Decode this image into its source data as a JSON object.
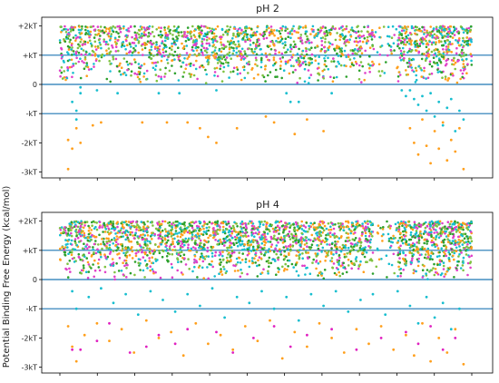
{
  "chart_data": [
    {
      "type": "scatter",
      "title": "pH 2",
      "ylabel": "",
      "xlabel": "",
      "ylim": [
        -3.2,
        2.3
      ],
      "yticks": [
        {
          "value": 2,
          "label": "+2kT"
        },
        {
          "value": 1,
          "label": "+kT"
        },
        {
          "value": 0,
          "label": "0"
        },
        {
          "value": -1,
          "label": "-kT"
        },
        {
          "value": -2,
          "label": "-2kT"
        },
        {
          "value": -3,
          "label": "-3kT"
        }
      ],
      "xtick_count": 12,
      "reference_lines": [
        1,
        0,
        -1
      ],
      "reference_line_color": "#1f77b4",
      "series": [
        {
          "color": "#17becf",
          "points": [
            [
              3,
              -0.6
            ],
            [
              4,
              -0.9
            ],
            [
              4,
              -1.2
            ],
            [
              5,
              -0.3
            ],
            [
              5,
              -0.1
            ],
            [
              9,
              -0.2
            ],
            [
              14,
              -0.3
            ],
            [
              24,
              -0.3
            ],
            [
              29,
              -0.3
            ],
            [
              38,
              -0.2
            ],
            [
              55,
              -0.3
            ],
            [
              56,
              -0.6
            ],
            [
              58,
              -0.6
            ],
            [
              66,
              -0.3
            ],
            [
              83,
              -0.2
            ],
            [
              84,
              -0.4
            ],
            [
              85,
              -0.2
            ],
            [
              86,
              -0.5
            ],
            [
              87,
              -0.7
            ],
            [
              88,
              -0.4
            ],
            [
              89,
              -0.9
            ],
            [
              90,
              -0.3
            ],
            [
              91,
              -1.1
            ],
            [
              92,
              -0.6
            ],
            [
              93,
              -1.4
            ],
            [
              94,
              -0.8
            ],
            [
              95,
              -0.5
            ],
            [
              96,
              -1.6
            ],
            [
              97,
              -0.9
            ],
            [
              98,
              -1.2
            ]
          ]
        },
        {
          "color": "#ff9f1c",
          "points": [
            [
              2,
              -1.9
            ],
            [
              2,
              -2.9
            ],
            [
              3,
              -2.2
            ],
            [
              4,
              -1.5
            ],
            [
              5,
              -2.0
            ],
            [
              8,
              -1.4
            ],
            [
              10,
              -1.3
            ],
            [
              20,
              -1.3
            ],
            [
              26,
              -1.3
            ],
            [
              31,
              -1.3
            ],
            [
              34,
              -1.5
            ],
            [
              36,
              -1.8
            ],
            [
              38,
              -2.0
            ],
            [
              43,
              -1.5
            ],
            [
              50,
              -1.1
            ],
            [
              52,
              -1.3
            ],
            [
              57,
              -1.7
            ],
            [
              60,
              -1.2
            ],
            [
              64,
              -1.6
            ],
            [
              85,
              -1.5
            ],
            [
              86,
              -2.0
            ],
            [
              87,
              -2.4
            ],
            [
              88,
              -1.2
            ],
            [
              89,
              -2.1
            ],
            [
              90,
              -2.7
            ],
            [
              91,
              -1.6
            ],
            [
              92,
              -2.2
            ],
            [
              93,
              -1.3
            ],
            [
              94,
              -2.6
            ],
            [
              95,
              -1.9
            ],
            [
              96,
              -2.3
            ],
            [
              97,
              -1.5
            ],
            [
              98,
              -2.9
            ]
          ]
        }
      ],
      "dense_band": {
        "y_range": [
          0.0,
          2.0
        ],
        "colors": [
          "#17becf",
          "#ff9f1c",
          "#7fc241",
          "#e040c8",
          "#2ca02c"
        ]
      }
    },
    {
      "type": "scatter",
      "title": "pH 4",
      "ylabel": "Potential Binding Free Energy (kcal/mol)",
      "xlabel": "",
      "ylim": [
        -3.2,
        2.3
      ],
      "yticks": [
        {
          "value": 2,
          "label": "+2kT"
        },
        {
          "value": 1,
          "label": "+kT"
        },
        {
          "value": 0,
          "label": "0"
        },
        {
          "value": -1,
          "label": "-kT"
        },
        {
          "value": -2,
          "label": "-2kT"
        },
        {
          "value": -3,
          "label": "-3kT"
        }
      ],
      "xtick_count": 12,
      "reference_lines": [
        1,
        0,
        -1
      ],
      "reference_line_color": "#1f77b4",
      "series": [
        {
          "color": "#17becf",
          "points": [
            [
              3,
              -0.4
            ],
            [
              4,
              -1.0
            ],
            [
              7,
              -0.6
            ],
            [
              10,
              -0.3
            ],
            [
              13,
              -0.8
            ],
            [
              16,
              -0.5
            ],
            [
              19,
              -1.2
            ],
            [
              22,
              -0.4
            ],
            [
              25,
              -0.7
            ],
            [
              28,
              -1.1
            ],
            [
              31,
              -0.5
            ],
            [
              34,
              -0.9
            ],
            [
              37,
              -0.3
            ],
            [
              40,
              -1.3
            ],
            [
              43,
              -0.6
            ],
            [
              46,
              -0.8
            ],
            [
              49,
              -0.4
            ],
            [
              52,
              -1.0
            ],
            [
              55,
              -0.6
            ],
            [
              58,
              -1.4
            ],
            [
              61,
              -0.5
            ],
            [
              64,
              -0.9
            ],
            [
              67,
              -0.4
            ],
            [
              70,
              -1.1
            ],
            [
              73,
              -0.7
            ],
            [
              76,
              -0.5
            ],
            [
              79,
              -1.2
            ],
            [
              82,
              -0.4
            ],
            [
              85,
              -0.9
            ],
            [
              87,
              -1.5
            ],
            [
              89,
              -0.6
            ],
            [
              91,
              -1.3
            ],
            [
              93,
              -0.8
            ],
            [
              95,
              -1.7
            ],
            [
              97,
              -1.0
            ]
          ]
        },
        {
          "color": "#ff9f1c",
          "points": [
            [
              2,
              -1.6
            ],
            [
              3,
              -2.3
            ],
            [
              4,
              -2.8
            ],
            [
              6,
              -1.9
            ],
            [
              9,
              -1.5
            ],
            [
              12,
              -2.1
            ],
            [
              15,
              -1.7
            ],
            [
              18,
              -2.5
            ],
            [
              21,
              -1.4
            ],
            [
              24,
              -2.0
            ],
            [
              27,
              -1.8
            ],
            [
              30,
              -2.6
            ],
            [
              33,
              -1.5
            ],
            [
              36,
              -2.2
            ],
            [
              39,
              -1.9
            ],
            [
              42,
              -2.4
            ],
            [
              45,
              -1.6
            ],
            [
              48,
              -2.1
            ],
            [
              51,
              -1.4
            ],
            [
              54,
              -2.7
            ],
            [
              57,
              -1.8
            ],
            [
              60,
              -2.3
            ],
            [
              63,
              -1.5
            ],
            [
              66,
              -2.0
            ],
            [
              69,
              -2.5
            ],
            [
              72,
              -1.7
            ],
            [
              75,
              -2.2
            ],
            [
              78,
              -1.6
            ],
            [
              81,
              -2.4
            ],
            [
              84,
              -1.9
            ],
            [
              86,
              -2.6
            ],
            [
              88,
              -1.5
            ],
            [
              90,
              -2.8
            ],
            [
              92,
              -2.0
            ],
            [
              94,
              -2.5
            ],
            [
              96,
              -1.7
            ],
            [
              98,
              -2.9
            ]
          ]
        },
        {
          "color": "#e020c0",
          "points": [
            [
              3,
              -2.4
            ],
            [
              5,
              -2.4
            ],
            [
              9,
              -2.1
            ],
            [
              12,
              -1.5
            ],
            [
              17,
              -2.5
            ],
            [
              21,
              -2.3
            ],
            [
              24,
              -1.9
            ],
            [
              28,
              -2.2
            ],
            [
              31,
              -1.7
            ],
            [
              38,
              -1.8
            ],
            [
              42,
              -2.5
            ],
            [
              47,
              -2.0
            ],
            [
              52,
              -1.6
            ],
            [
              56,
              -2.3
            ],
            [
              60,
              -1.9
            ],
            [
              66,
              -1.7
            ],
            [
              72,
              -2.4
            ],
            [
              78,
              -2.0
            ],
            [
              84,
              -1.8
            ],
            [
              87,
              -2.2
            ],
            [
              90,
              -1.6
            ],
            [
              93,
              -2.4
            ],
            [
              96,
              -2.0
            ]
          ]
        }
      ],
      "dense_band": {
        "y_range": [
          0.0,
          2.0
        ],
        "colors": [
          "#17becf",
          "#ff9f1c",
          "#7fc241",
          "#e040c8",
          "#2ca02c"
        ]
      }
    }
  ]
}
